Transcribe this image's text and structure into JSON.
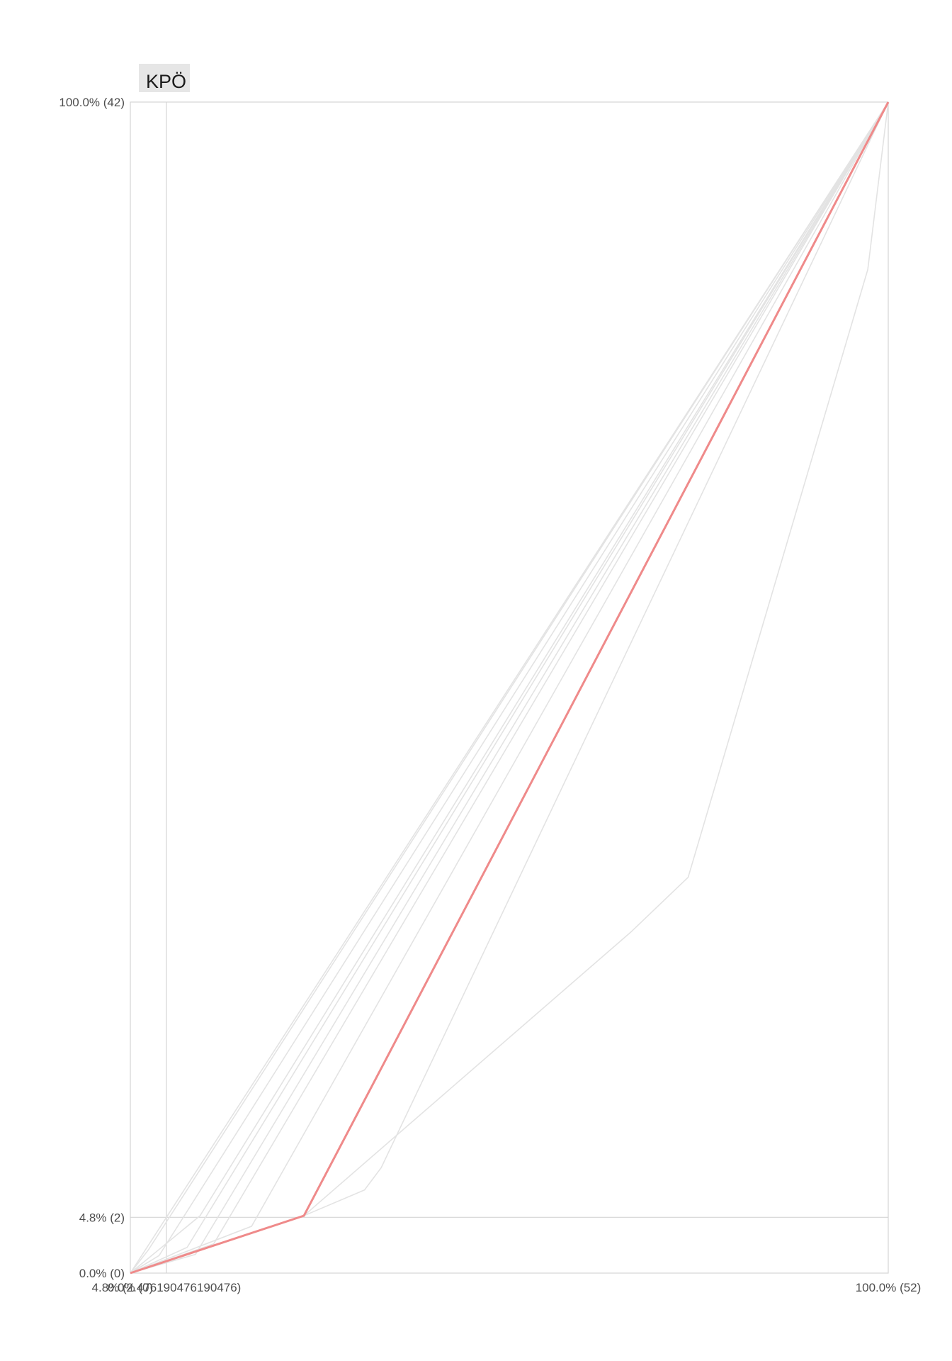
{
  "chart_data": {
    "type": "line",
    "panel_title": "KPÖ",
    "x_ticks": [
      {
        "value": 0,
        "label": "0.0% (0)"
      },
      {
        "value": 4.761904761904762,
        "label": "4.8% (2.476190476190476)"
      },
      {
        "value": 100,
        "label": "100.0% (52)"
      }
    ],
    "y_ticks": [
      {
        "value": 0,
        "label": "0.0% (0)"
      },
      {
        "value": 4.761904761904762,
        "label": "4.8% (2)"
      },
      {
        "value": 100,
        "label": "100.0% (42)"
      }
    ],
    "xlim": [
      0,
      100
    ],
    "ylim": [
      0,
      100
    ],
    "grid": true,
    "highlight_color": "#ef8a8a",
    "background_color": "#e3e3e3",
    "series": [
      {
        "highlight": true,
        "points": [
          [
            0,
            0
          ],
          [
            22.9,
            4.9
          ],
          [
            100,
            100
          ]
        ]
      },
      {
        "highlight": false,
        "points": [
          [
            0,
            0
          ],
          [
            22.9,
            4.9
          ],
          [
            30.9,
            7.1
          ],
          [
            33.1,
            9.0
          ],
          [
            100,
            100
          ]
        ]
      },
      {
        "highlight": false,
        "points": [
          [
            0,
            0
          ],
          [
            22.9,
            4.9
          ],
          [
            66.0,
            29.1
          ],
          [
            73.6,
            33.8
          ],
          [
            97.3,
            85.7
          ],
          [
            100,
            100
          ]
        ]
      },
      {
        "highlight": false,
        "points": [
          [
            0,
            0
          ],
          [
            9.2,
            4.9
          ],
          [
            100,
            100
          ]
        ]
      },
      {
        "highlight": false,
        "points": [
          [
            0,
            0
          ],
          [
            100,
            100
          ]
        ]
      },
      {
        "highlight": false,
        "points": [
          [
            0,
            0
          ],
          [
            2.4,
            2.0
          ],
          [
            100,
            100
          ]
        ]
      },
      {
        "highlight": false,
        "points": [
          [
            0,
            0
          ],
          [
            3.8,
            1.5
          ],
          [
            100,
            100
          ]
        ]
      },
      {
        "highlight": false,
        "points": [
          [
            0,
            0
          ],
          [
            7.5,
            2.2
          ],
          [
            100,
            100
          ]
        ]
      },
      {
        "highlight": false,
        "points": [
          [
            0,
            0
          ],
          [
            8.6,
            1.6
          ],
          [
            100,
            100
          ]
        ]
      },
      {
        "highlight": false,
        "points": [
          [
            0,
            0
          ],
          [
            11.0,
            2.5
          ],
          [
            100,
            100
          ]
        ]
      },
      {
        "highlight": false,
        "points": [
          [
            0,
            0
          ],
          [
            16.0,
            4.0
          ],
          [
            100,
            100
          ]
        ]
      }
    ]
  }
}
